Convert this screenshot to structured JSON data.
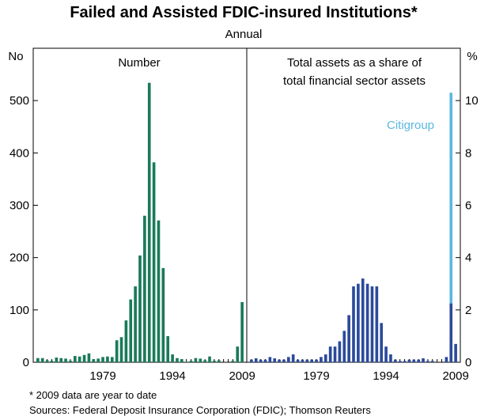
{
  "title": "Failed and Assisted FDIC-insured Institutions*",
  "subtitle": "Annual",
  "footnote": "*   2009 data are year to date",
  "sources": "Sources: Federal Deposit Insurance Corporation (FDIC); Thomson Reuters",
  "colors": {
    "left_bars": "#1a7a5a",
    "right_bars": "#2b4a9b",
    "citigroup": "#5bb8e0"
  },
  "chart_data": [
    {
      "type": "bar",
      "panel": "left",
      "title": "Number",
      "ylabel": "No",
      "ylim": [
        0,
        600
      ],
      "yticks": [
        0,
        100,
        200,
        300,
        400,
        500
      ],
      "xlim": [
        1964,
        2010
      ],
      "xticks": [
        "1979",
        "1994",
        "2009"
      ],
      "x": [
        1965,
        1966,
        1967,
        1968,
        1969,
        1970,
        1971,
        1972,
        1973,
        1974,
        1975,
        1976,
        1977,
        1978,
        1979,
        1980,
        1981,
        1982,
        1983,
        1984,
        1985,
        1986,
        1987,
        1988,
        1989,
        1990,
        1991,
        1992,
        1993,
        1994,
        1995,
        1996,
        1997,
        1998,
        1999,
        2000,
        2001,
        2002,
        2003,
        2004,
        2005,
        2006,
        2007,
        2008,
        2009
      ],
      "values": [
        8,
        8,
        4,
        3,
        9,
        8,
        7,
        3,
        12,
        11,
        14,
        17,
        6,
        7,
        10,
        11,
        10,
        42,
        48,
        80,
        120,
        145,
        204,
        280,
        534,
        382,
        271,
        180,
        50,
        15,
        8,
        6,
        1,
        3,
        8,
        7,
        4,
        11,
        3,
        4,
        0,
        0,
        3,
        30,
        115
      ]
    },
    {
      "type": "bar",
      "panel": "right",
      "title_lines": [
        "Total assets as a share of",
        "total financial sector assets"
      ],
      "ylabel": "%",
      "ylim": [
        0,
        12
      ],
      "yticks": [
        0,
        2,
        4,
        6,
        8,
        10
      ],
      "xlim": [
        1964,
        2010
      ],
      "xticks": [
        "1979",
        "1994",
        "2009"
      ],
      "x": [
        1965,
        1966,
        1967,
        1968,
        1969,
        1970,
        1971,
        1972,
        1973,
        1974,
        1975,
        1976,
        1977,
        1978,
        1979,
        1980,
        1981,
        1982,
        1983,
        1984,
        1985,
        1986,
        1987,
        1988,
        1989,
        1990,
        1991,
        1992,
        1993,
        1994,
        1995,
        1996,
        1997,
        1998,
        1999,
        2000,
        2001,
        2002,
        2003,
        2004,
        2005,
        2006,
        2007,
        2008,
        2009
      ],
      "values": [
        0.1,
        0.15,
        0.1,
        0.1,
        0.2,
        0.15,
        0.1,
        0.1,
        0.2,
        0.3,
        0.1,
        0.1,
        0.1,
        0.1,
        0.1,
        0.2,
        0.3,
        0.6,
        0.6,
        0.8,
        1.2,
        1.8,
        2.9,
        3.0,
        3.2,
        3.0,
        2.9,
        2.9,
        1.5,
        0.6,
        0.3,
        0.1,
        0.05,
        0.05,
        0.1,
        0.1,
        0.1,
        0.15,
        0.05,
        0.05,
        0,
        0,
        0.2,
        2.25,
        0.7
      ],
      "stacked_extra": [
        {
          "x": 2008,
          "value": 8.05,
          "series": "Citigroup"
        }
      ],
      "annotation": "Citigroup"
    }
  ]
}
